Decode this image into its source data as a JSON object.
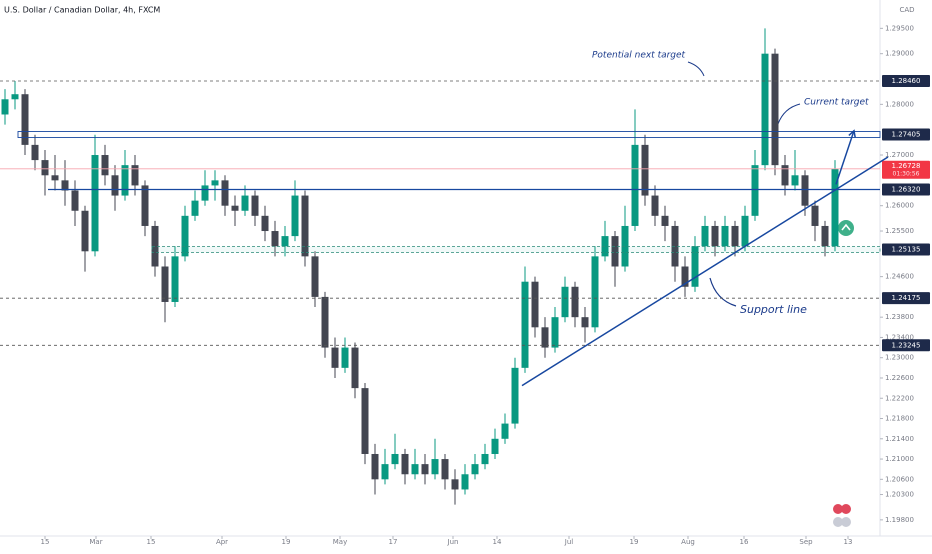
{
  "chart_data": {
    "type": "candlestick",
    "title": "U.S. Dollar / Canadian Dollar, 4h, FXCM",
    "axis_unit": "CAD",
    "xlim": [
      -0.5,
      87.5
    ],
    "xticks": [
      {
        "value": 4,
        "label": "15"
      },
      {
        "value": 9.1,
        "label": "Mar"
      },
      {
        "value": 14.6,
        "label": "15"
      },
      {
        "value": 21.7,
        "label": "Apr"
      },
      {
        "value": 28.1,
        "label": "19"
      },
      {
        "value": 33.5,
        "label": "May"
      },
      {
        "value": 38.8,
        "label": "17"
      },
      {
        "value": 44.8,
        "label": "Jun"
      },
      {
        "value": 49.2,
        "label": "14"
      },
      {
        "value": 56.4,
        "label": "Jul"
      },
      {
        "value": 62.9,
        "label": "19"
      },
      {
        "value": 68.3,
        "label": "Aug"
      },
      {
        "value": 73.9,
        "label": "16"
      },
      {
        "value": 80.1,
        "label": "Sep"
      },
      {
        "value": 84.3,
        "label": "13"
      }
    ],
    "ylim": [
      1.196,
      1.3
    ],
    "yticks": [
      {
        "value": 1.295,
        "label": "1.29500"
      },
      {
        "value": 1.29,
        "label": "1.29000"
      },
      {
        "value": 1.28,
        "label": "1.28000"
      },
      {
        "value": 1.27,
        "label": "1.27000"
      },
      {
        "value": 1.26,
        "label": "1.26000"
      },
      {
        "value": 1.255,
        "label": "1.25500"
      },
      {
        "value": 1.246,
        "label": "1.24600"
      },
      {
        "value": 1.238,
        "label": "1.23800"
      },
      {
        "value": 1.234,
        "label": "1.23400"
      },
      {
        "value": 1.23,
        "label": "1.23000"
      },
      {
        "value": 1.226,
        "label": "1.22600"
      },
      {
        "value": 1.222,
        "label": "1.22200"
      },
      {
        "value": 1.218,
        "label": "1.21800"
      },
      {
        "value": 1.214,
        "label": "1.21400"
      },
      {
        "value": 1.21,
        "label": "1.21000"
      },
      {
        "value": 1.206,
        "label": "1.20600"
      },
      {
        "value": 1.203,
        "label": "1.20300"
      },
      {
        "value": 1.198,
        "label": "1.19800"
      }
    ],
    "grid": false,
    "up_color": "#089981",
    "down_color": "#434651",
    "open": [
      1.278,
      1.281,
      1.282,
      1.272,
      1.269,
      1.266,
      1.265,
      1.263,
      1.259,
      1.251,
      1.27,
      1.266,
      1.262,
      1.268,
      1.264,
      1.256,
      1.248,
      1.241,
      1.25,
      1.258,
      1.261,
      1.264,
      1.265,
      1.26,
      1.259,
      1.262,
      1.258,
      1.255,
      1.252,
      1.254,
      1.262,
      1.25,
      1.242,
      1.232,
      1.228,
      1.232,
      1.224,
      1.211,
      1.206,
      1.209,
      1.211,
      1.207,
      1.209,
      1.207,
      1.21,
      1.206,
      1.204,
      1.207,
      1.209,
      1.211,
      1.214,
      1.217,
      1.228,
      1.245,
      1.236,
      1.232,
      1.238,
      1.244,
      1.238,
      1.236,
      1.25,
      1.254,
      1.248,
      1.256,
      1.272,
      1.262,
      1.258,
      1.256,
      1.248,
      1.244,
      1.252,
      1.256,
      1.252,
      1.256,
      1.252,
      1.258,
      1.268,
      1.29,
      1.268,
      1.264,
      1.266,
      1.26,
      1.256,
      1.252
    ],
    "high": [
      1.283,
      1.2846,
      1.283,
      1.274,
      1.271,
      1.27,
      1.269,
      1.265,
      1.26,
      1.274,
      1.272,
      1.268,
      1.271,
      1.27,
      1.265,
      1.257,
      1.25,
      1.252,
      1.26,
      1.263,
      1.267,
      1.267,
      1.266,
      1.262,
      1.264,
      1.263,
      1.26,
      1.257,
      1.256,
      1.265,
      1.263,
      1.251,
      1.243,
      1.234,
      1.234,
      1.233,
      1.225,
      1.213,
      1.212,
      1.215,
      1.212,
      1.212,
      1.211,
      1.214,
      1.211,
      1.208,
      1.209,
      1.211,
      1.213,
      1.216,
      1.219,
      1.23,
      1.248,
      1.246,
      1.238,
      1.24,
      1.246,
      1.245,
      1.24,
      1.252,
      1.257,
      1.255,
      1.26,
      1.279,
      1.274,
      1.264,
      1.26,
      1.257,
      1.25,
      1.254,
      1.258,
      1.257,
      1.258,
      1.257,
      1.26,
      1.271,
      1.295,
      1.291,
      1.27,
      1.271,
      1.267,
      1.261,
      1.257,
      1.269
    ],
    "low": [
      1.276,
      1.279,
      1.27,
      1.267,
      1.262,
      1.263,
      1.26,
      1.256,
      1.247,
      1.25,
      1.264,
      1.259,
      1.261,
      1.262,
      1.254,
      1.246,
      1.237,
      1.24,
      1.249,
      1.257,
      1.26,
      1.261,
      1.258,
      1.256,
      1.258,
      1.256,
      1.253,
      1.25,
      1.25,
      1.253,
      1.248,
      1.24,
      1.23,
      1.226,
      1.227,
      1.222,
      1.209,
      1.203,
      1.205,
      1.208,
      1.205,
      1.206,
      1.205,
      1.206,
      1.204,
      1.201,
      1.203,
      1.206,
      1.208,
      1.21,
      1.213,
      1.216,
      1.227,
      1.234,
      1.23,
      1.231,
      1.237,
      1.236,
      1.233,
      1.235,
      1.249,
      1.244,
      1.247,
      1.255,
      1.26,
      1.256,
      1.253,
      1.245,
      1.242,
      1.243,
      1.251,
      1.25,
      1.251,
      1.25,
      1.251,
      1.257,
      1.267,
      1.266,
      1.262,
      1.263,
      1.258,
      1.253,
      1.25,
      1.251
    ],
    "close": [
      1.281,
      1.282,
      1.272,
      1.269,
      1.266,
      1.265,
      1.263,
      1.259,
      1.251,
      1.27,
      1.266,
      1.262,
      1.268,
      1.264,
      1.256,
      1.248,
      1.241,
      1.25,
      1.258,
      1.261,
      1.264,
      1.265,
      1.26,
      1.259,
      1.262,
      1.258,
      1.255,
      1.252,
      1.254,
      1.262,
      1.25,
      1.242,
      1.232,
      1.228,
      1.232,
      1.224,
      1.211,
      1.206,
      1.209,
      1.211,
      1.207,
      1.209,
      1.207,
      1.21,
      1.206,
      1.204,
      1.207,
      1.209,
      1.211,
      1.214,
      1.217,
      1.228,
      1.245,
      1.236,
      1.232,
      1.238,
      1.244,
      1.238,
      1.236,
      1.25,
      1.254,
      1.248,
      1.256,
      1.272,
      1.262,
      1.258,
      1.256,
      1.248,
      1.244,
      1.252,
      1.256,
      1.252,
      1.256,
      1.252,
      1.258,
      1.268,
      1.29,
      1.268,
      1.264,
      1.266,
      1.26,
      1.256,
      1.252,
      1.26728
    ],
    "levels": [
      {
        "value": 1.2846,
        "label": "1.28460",
        "style": "dashed"
      },
      {
        "value": 1.27405,
        "label": "1.27405",
        "style": "double"
      },
      {
        "value": 1.2632,
        "label": "1.26320",
        "style": "solid"
      },
      {
        "value": 1.25135,
        "label": "1.25135",
        "style": "zone"
      },
      {
        "value": 1.24175,
        "label": "1.24175",
        "style": "dashed"
      },
      {
        "value": 1.23245,
        "label": "1.23245",
        "style": "dashed"
      }
    ],
    "current": {
      "value": 1.26728,
      "label": "1.26728",
      "countdown": "01:30:56"
    },
    "trendline": {
      "x": [
        51.7,
        88.3
      ],
      "y": [
        1.2245,
        1.2696
      ]
    },
    "target_arrow": {
      "x": [
        83.1,
        84.9
      ],
      "y": [
        1.2642,
        1.2748
      ]
    },
    "annotations": [
      "Potential next target",
      "Current target",
      "Support line"
    ]
  }
}
